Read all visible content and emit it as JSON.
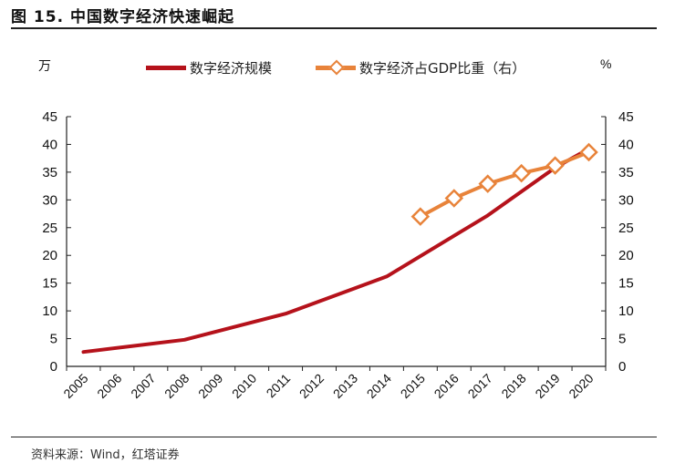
{
  "header": {
    "title": "图 15. 中国数字经济快速崛起"
  },
  "footer": {
    "source": "资料来源：Wind，红塔证券"
  },
  "chart_data": {
    "type": "line",
    "title": "图 15. 中国数字经济快速崛起",
    "left_axis_unit": "万",
    "right_axis_unit": "%",
    "categories": [
      "2005",
      "2006",
      "2007",
      "2008",
      "2009",
      "2010",
      "2011",
      "2012",
      "2013",
      "2014",
      "2015",
      "2016",
      "2017",
      "2018",
      "2019",
      "2020"
    ],
    "left_ylim": [
      0,
      45
    ],
    "right_ylim": [
      0,
      45
    ],
    "left_ticks": [
      0,
      5,
      10,
      15,
      20,
      25,
      30,
      35,
      40,
      45
    ],
    "right_ticks": [
      0,
      5,
      10,
      15,
      20,
      25,
      30,
      35,
      40,
      45
    ],
    "legend_position": "top",
    "series": [
      {
        "name": "数字经济规模",
        "axis": "left",
        "color": "#b5121b",
        "marker": "none",
        "points": [
          {
            "x": "2005",
            "y": 2.6
          },
          {
            "x": "2008",
            "y": 4.8
          },
          {
            "x": "2011",
            "y": 9.5
          },
          {
            "x": "2014",
            "y": 16.2
          },
          {
            "x": "2017",
            "y": 27.2
          },
          {
            "x": "2019",
            "y": 35.8
          },
          {
            "x": "2020",
            "y": 39.2
          }
        ]
      },
      {
        "name": "数字经济占GDP比重（右）",
        "axis": "right",
        "color": "#e8833a",
        "marker": "diamond",
        "points": [
          {
            "x": "2015",
            "y": 27.0
          },
          {
            "x": "2016",
            "y": 30.3
          },
          {
            "x": "2017",
            "y": 32.9
          },
          {
            "x": "2018",
            "y": 34.8
          },
          {
            "x": "2019",
            "y": 36.2
          },
          {
            "x": "2020",
            "y": 38.6
          }
        ]
      }
    ]
  }
}
